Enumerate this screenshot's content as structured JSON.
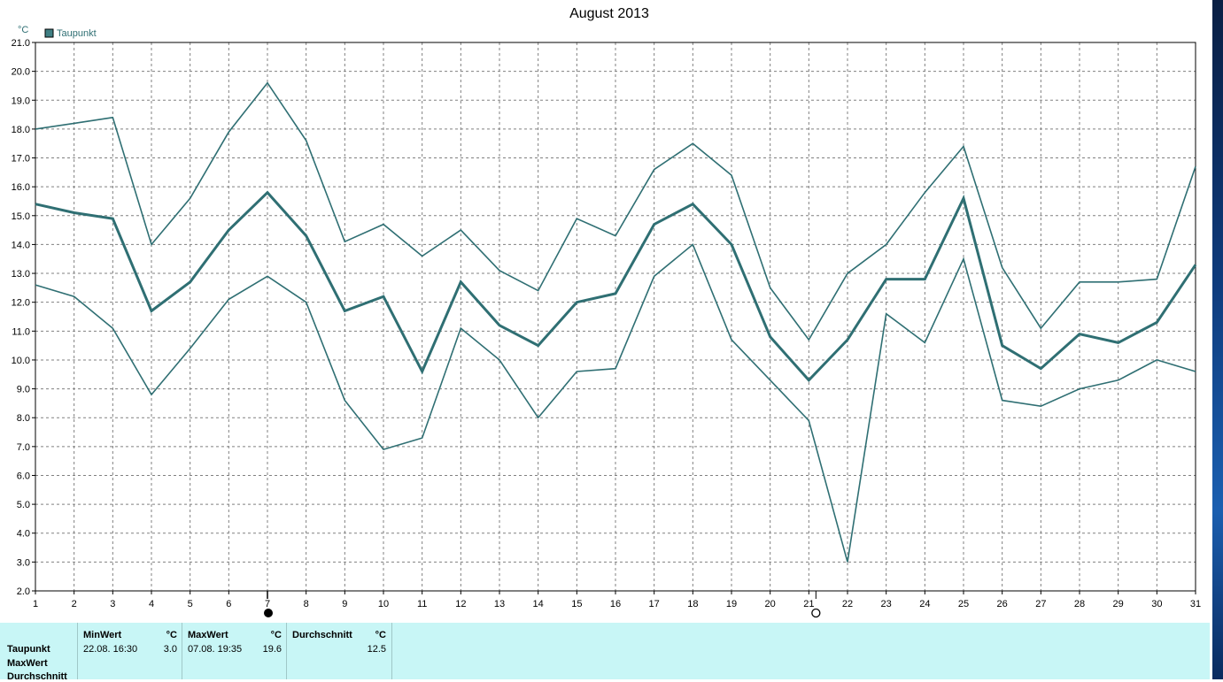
{
  "chart_data": {
    "type": "line",
    "title": "August 2013",
    "ylabel": "°C",
    "legend": [
      {
        "label": "Taupunkt",
        "color": "#2f6f73"
      }
    ],
    "legend_position": "top-left",
    "grid": true,
    "ylim": [
      2.0,
      21.0
    ],
    "xlim": [
      1,
      31
    ],
    "x": [
      1,
      2,
      3,
      4,
      5,
      6,
      7,
      8,
      9,
      10,
      11,
      12,
      13,
      14,
      15,
      16,
      17,
      18,
      19,
      20,
      21,
      22,
      23,
      24,
      25,
      26,
      27,
      28,
      29,
      30,
      31
    ],
    "series": [
      {
        "name": "MaxWert",
        "values": [
          18.0,
          18.2,
          18.4,
          14.0,
          15.6,
          17.9,
          19.6,
          17.6,
          14.1,
          14.7,
          13.6,
          14.5,
          13.1,
          12.4,
          14.9,
          14.3,
          16.6,
          17.5,
          16.4,
          12.5,
          10.7,
          13.0,
          14.0,
          15.8,
          17.4,
          13.2,
          11.1,
          12.7,
          12.7,
          12.8,
          16.7
        ]
      },
      {
        "name": "Durchschnitt",
        "values": [
          15.4,
          15.1,
          14.9,
          11.7,
          12.7,
          14.5,
          15.8,
          14.3,
          11.7,
          12.2,
          9.6,
          12.7,
          11.2,
          10.5,
          12.0,
          12.3,
          14.7,
          15.4,
          14.0,
          10.8,
          9.3,
          10.7,
          12.8,
          12.8,
          15.6,
          10.5,
          9.7,
          10.9,
          10.6,
          11.3,
          13.3
        ]
      },
      {
        "name": "MinWert",
        "values": [
          12.6,
          12.2,
          11.1,
          8.8,
          10.4,
          12.1,
          12.9,
          12.0,
          8.6,
          6.9,
          7.3,
          11.1,
          10.0,
          8.0,
          9.6,
          9.7,
          12.9,
          14.0,
          10.7,
          9.3,
          7.9,
          3.0,
          11.6,
          10.6,
          13.5,
          8.6,
          8.4,
          9.0,
          9.3,
          10.0,
          9.6
        ]
      }
    ],
    "markers": {
      "max_day": 7,
      "min_day": 21
    }
  },
  "stats": {
    "row_labels": [
      "Taupunkt",
      "MaxWert",
      "Durchschnitt"
    ],
    "min": {
      "header": "MinWert",
      "unit": "°C",
      "time": "22.08.  16:30",
      "value": "3.0"
    },
    "max": {
      "header": "MaxWert",
      "unit": "°C",
      "time": "07.08.  19:35",
      "value": "19.6"
    },
    "avg": {
      "header": "Durchschnitt",
      "unit": "°C",
      "value": "12.5"
    }
  },
  "colors": {
    "line": "#2f6f73",
    "grid": "#808080",
    "stats_bg": "#c8f6f6"
  }
}
